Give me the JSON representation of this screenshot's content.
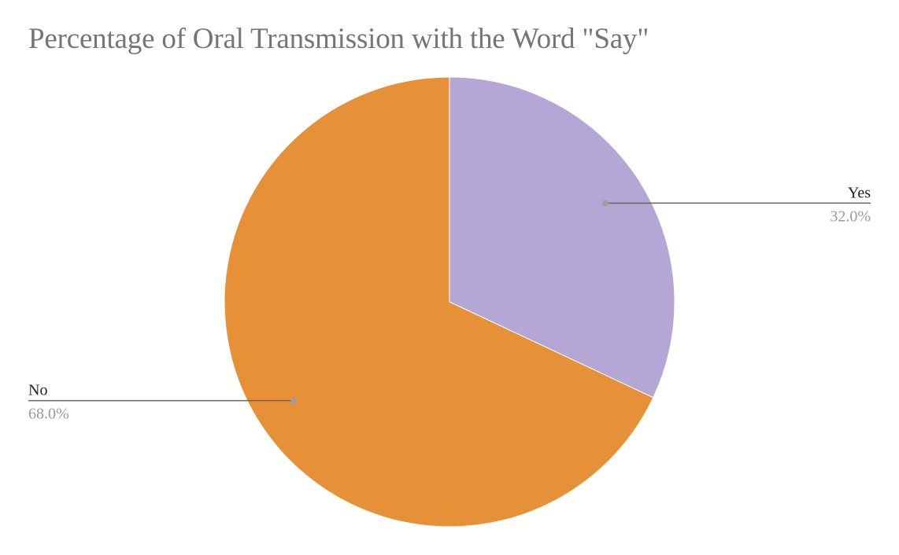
{
  "chart_data": {
    "type": "pie",
    "title": "Percentage of Oral Transmission with the Word \"Say\"",
    "slices": [
      {
        "label": "Yes",
        "value": 32.0,
        "percent_label": "32.0%",
        "color": "#b4a7d6"
      },
      {
        "label": "No",
        "value": 68.0,
        "percent_label": "68.0%",
        "color": "#e69138"
      }
    ],
    "leader_line_color": "#666666",
    "leader_dot_color": "#9e9e9e"
  }
}
